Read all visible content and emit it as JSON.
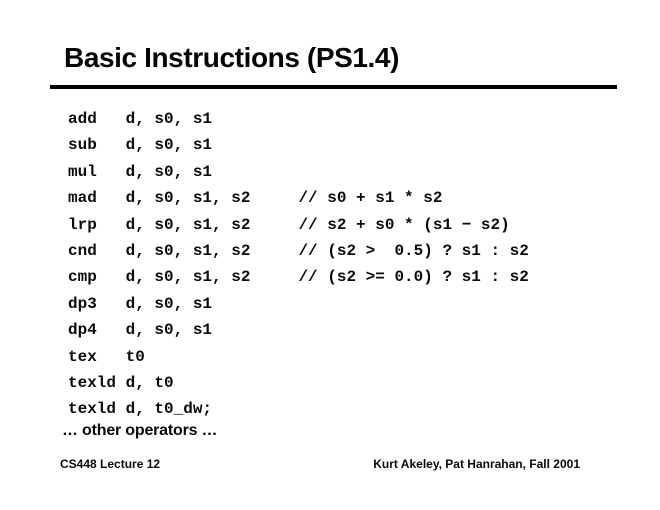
{
  "slide": {
    "title": "Basic Instructions (PS1.4)",
    "code_lines": [
      "add   d, s0, s1",
      "sub   d, s0, s1",
      "mul   d, s0, s1",
      "mad   d, s0, s1, s2     // s0 + s1 * s2",
      "lrp   d, s0, s1, s2     // s2 + s0 * (s1 − s2)",
      "cnd   d, s0, s1, s2     // (s2 >  0.5) ? s1 : s2",
      "cmp   d, s0, s1, s2     // (s2 >= 0.0) ? s1 : s2",
      "dp3   d, s0, s1",
      "dp4   d, s0, s1",
      "tex   t0",
      "texld d, t0",
      "texld d, t0_dw;"
    ],
    "ellipsis_line": "… other operators …",
    "footer": {
      "left": "CS448 Lecture 12",
      "right": "Kurt Akeley, Pat Hanrahan, Fall 2001"
    },
    "colors": {
      "background": "#ffffff",
      "text": "#000000",
      "rule": "#000000"
    }
  }
}
